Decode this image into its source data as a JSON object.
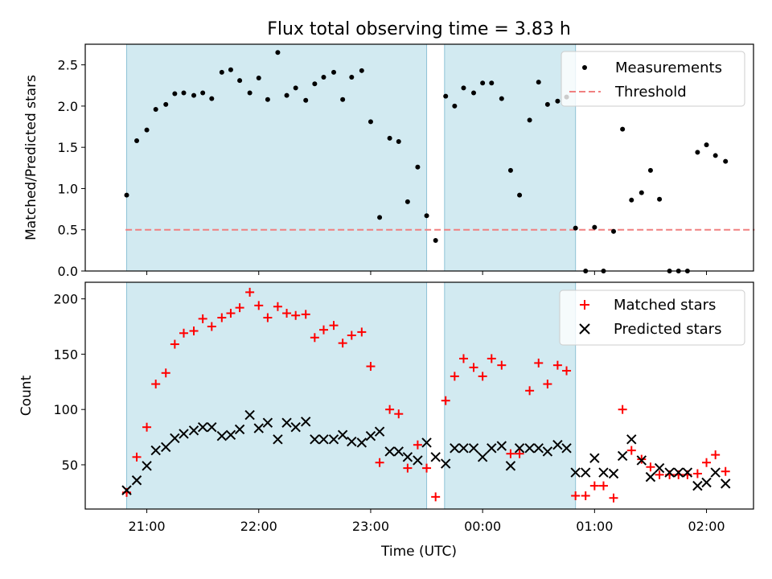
{
  "chart_data": [
    {
      "id": "top",
      "type": "scatter",
      "title": "Flux total observing time = 3.83 h",
      "xlabel": "",
      "ylabel": "Matched/Predicted stars",
      "ylim": [
        0,
        2.75
      ],
      "yticks": [
        0.0,
        0.5,
        1.0,
        1.5,
        2.0,
        2.5
      ],
      "ytick_labels": [
        "0.0",
        "0.5",
        "1.0",
        "1.5",
        "2.0",
        "2.5"
      ],
      "legend": {
        "placement": "top-right",
        "items": [
          "Measurements",
          "Threshold"
        ]
      },
      "threshold": {
        "name": "Threshold",
        "value": 0.5,
        "x_start": 20.81,
        "x_end": 26.43,
        "color": "#f08080"
      },
      "series": [
        {
          "name": "Measurements",
          "color": "#000000",
          "x": [
            20.82,
            20.91,
            21.0,
            21.08,
            21.17,
            21.25,
            21.33,
            21.42,
            21.5,
            21.58,
            21.67,
            21.75,
            21.83,
            21.92,
            22.0,
            22.08,
            22.17,
            22.25,
            22.33,
            22.42,
            22.5,
            22.58,
            22.67,
            22.75,
            22.83,
            22.92,
            23.0,
            23.08,
            23.17,
            23.25,
            23.33,
            23.42,
            23.5,
            23.58,
            23.67,
            23.75,
            23.83,
            23.92,
            24.0,
            24.08,
            24.17,
            24.25,
            24.33,
            24.42,
            24.5,
            24.58,
            24.67,
            24.75,
            24.83,
            24.92,
            25.0,
            25.08,
            25.17,
            25.25,
            25.33,
            25.42,
            25.5,
            25.58,
            25.67,
            25.75,
            25.83,
            25.92,
            26.0,
            26.08,
            26.17
          ],
          "values": [
            0.92,
            1.58,
            1.71,
            1.96,
            2.02,
            2.15,
            2.16,
            2.13,
            2.16,
            2.09,
            2.41,
            2.44,
            2.31,
            2.16,
            2.34,
            2.08,
            2.65,
            2.13,
            2.22,
            2.07,
            2.27,
            2.35,
            2.41,
            2.08,
            2.35,
            2.43,
            1.81,
            0.65,
            1.61,
            1.57,
            0.84,
            1.26,
            0.67,
            0.37,
            2.12,
            2.0,
            2.22,
            2.16,
            2.28,
            2.28,
            2.09,
            1.22,
            0.92,
            1.83,
            2.29,
            2.02,
            2.06,
            2.11,
            0.52,
            0.0,
            0.53,
            0.0,
            0.48,
            1.72,
            0.86,
            0.95,
            1.22,
            0.87,
            0.0,
            0.0,
            0.0,
            1.44,
            1.53,
            1.4,
            1.33
          ]
        }
      ]
    },
    {
      "id": "bottom",
      "type": "scatter",
      "title": "",
      "xlabel": "Time (UTC)",
      "ylabel": "Count",
      "ylim": [
        10,
        215
      ],
      "yticks": [
        50,
        100,
        150,
        200
      ],
      "ytick_labels": [
        "50",
        "100",
        "150",
        "200"
      ],
      "legend": {
        "placement": "top-right",
        "items": [
          "Matched stars",
          "Predicted stars"
        ]
      },
      "series": [
        {
          "name": "Matched stars",
          "color": "#ff0000",
          "marker": "plus",
          "x": [
            20.82,
            20.91,
            21.0,
            21.08,
            21.17,
            21.25,
            21.33,
            21.42,
            21.5,
            21.58,
            21.67,
            21.75,
            21.83,
            21.92,
            22.0,
            22.08,
            22.17,
            22.25,
            22.33,
            22.42,
            22.5,
            22.58,
            22.67,
            22.75,
            22.83,
            22.92,
            23.0,
            23.08,
            23.17,
            23.25,
            23.33,
            23.42,
            23.5,
            23.58,
            23.67,
            23.75,
            23.83,
            23.92,
            24.0,
            24.08,
            24.17,
            24.25,
            24.33,
            24.42,
            24.5,
            24.58,
            24.67,
            24.75,
            24.83,
            24.92,
            25.0,
            25.08,
            25.17,
            25.25,
            25.33,
            25.42,
            25.5,
            25.58,
            25.67,
            25.75,
            25.83,
            25.92,
            26.0,
            26.08,
            26.17
          ],
          "values": [
            25,
            57,
            84,
            123,
            133,
            159,
            169,
            171,
            182,
            175,
            183,
            187,
            192,
            206,
            194,
            183,
            193,
            187,
            185,
            186,
            165,
            172,
            176,
            160,
            167,
            170,
            139,
            52,
            100,
            96,
            47,
            68,
            47,
            21,
            108,
            130,
            146,
            138,
            130,
            146,
            140,
            60,
            60,
            117,
            142,
            123,
            140,
            135,
            22,
            22,
            31,
            31,
            20,
            100,
            63,
            55,
            48,
            41,
            41,
            41,
            41,
            42,
            52,
            59,
            44
          ]
        },
        {
          "name": "Predicted stars",
          "color": "#000000",
          "marker": "x",
          "x": [
            20.82,
            20.91,
            21.0,
            21.08,
            21.17,
            21.25,
            21.33,
            21.42,
            21.5,
            21.58,
            21.67,
            21.75,
            21.83,
            21.92,
            22.0,
            22.08,
            22.17,
            22.25,
            22.33,
            22.42,
            22.5,
            22.58,
            22.67,
            22.75,
            22.83,
            22.92,
            23.0,
            23.08,
            23.17,
            23.25,
            23.33,
            23.42,
            23.5,
            23.58,
            23.67,
            23.75,
            23.83,
            23.92,
            24.0,
            24.08,
            24.17,
            24.25,
            24.33,
            24.42,
            24.5,
            24.58,
            24.67,
            24.75,
            24.83,
            24.92,
            25.0,
            25.08,
            25.17,
            25.25,
            25.33,
            25.42,
            25.5,
            25.58,
            25.67,
            25.75,
            25.83,
            25.92,
            26.0,
            26.08,
            26.17
          ],
          "values": [
            27,
            36,
            49,
            63,
            66,
            74,
            78,
            81,
            84,
            84,
            76,
            77,
            82,
            95,
            83,
            88,
            73,
            88,
            84,
            89,
            73,
            73,
            73,
            77,
            71,
            70,
            76,
            80,
            62,
            62,
            57,
            54,
            70,
            57,
            51,
            65,
            65,
            65,
            57,
            65,
            67,
            49,
            65,
            65,
            65,
            62,
            68,
            65,
            43,
            43,
            56,
            43,
            42,
            58,
            73,
            54,
            39,
            47,
            43,
            43,
            43,
            31,
            34,
            43,
            33
          ]
        }
      ]
    }
  ],
  "shared_x": {
    "xlim": [
      20.45,
      26.42
    ],
    "xticks": [
      21,
      22,
      23,
      24,
      25,
      26
    ],
    "xtick_labels": [
      "21:00",
      "22:00",
      "23:00",
      "00:00",
      "01:00",
      "02:00"
    ],
    "shaded_spans": [
      [
        20.82,
        23.5
      ],
      [
        23.66,
        24.83
      ]
    ],
    "shade_color": "#add8e6"
  }
}
